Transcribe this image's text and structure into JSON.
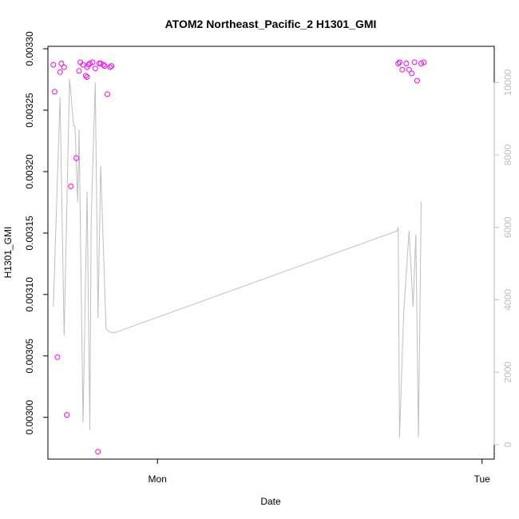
{
  "chart_data": {
    "type": "scatter",
    "title": "ATOM2 Northeast_Pacific_2 H1301_GMI",
    "xlabel": "Date",
    "ylabel": "H1301_GMI",
    "x_tick_labels": [
      "Mon",
      "Tue"
    ],
    "xlim": [
      -8.1,
      24.9
    ],
    "ylim": [
      0.002966,
      0.003302
    ],
    "y_ticks": [
      0.003,
      0.00305,
      0.0031,
      0.00315,
      0.0032,
      0.00325,
      0.0033
    ],
    "y_tick_labels": [
      "0.00300",
      "0.00305",
      "0.00310",
      "0.00315",
      "0.00320",
      "0.00325",
      "0.00330"
    ],
    "y2lim": [
      -400,
      11000
    ],
    "y2_ticks": [
      0,
      2000,
      4000,
      6000,
      8000,
      10000
    ],
    "y2_tick_labels": [
      "0",
      "2000",
      "4000",
      "6000",
      "8000",
      "10000"
    ],
    "grid": false,
    "legend": "none",
    "series": [
      {
        "role": "scatter",
        "axis": "left",
        "color": "#ff00ff",
        "marker": "open-circle",
        "x": [
          -7.7,
          -7.6,
          -7.4,
          -7.2,
          -7.1,
          -6.9,
          -6.7,
          -6.4,
          -6.0,
          -5.8,
          -5.7,
          -5.5,
          -5.3,
          -5.2,
          -5.2,
          -5.1,
          -5.0,
          -4.8,
          -4.6,
          -4.4,
          -4.3,
          -4.2,
          -4.0,
          -3.9,
          -3.7,
          -3.5,
          -3.4,
          17.8,
          17.9,
          18.1,
          18.4,
          18.6,
          18.8,
          19.0,
          19.2,
          19.5,
          19.7
        ],
        "y": [
          0.003287,
          0.003265,
          0.003049,
          0.003281,
          0.003288,
          0.003285,
          0.003002,
          0.003188,
          0.003211,
          0.003282,
          0.003289,
          0.003287,
          0.003278,
          0.003277,
          0.003285,
          0.003287,
          0.003288,
          0.003289,
          0.003284,
          0.002972,
          0.003288,
          0.003288,
          0.003287,
          0.003286,
          0.003263,
          0.003285,
          0.003286,
          0.003288,
          0.003289,
          0.003283,
          0.003288,
          0.003283,
          0.00328,
          0.003289,
          0.003274,
          0.003288,
          0.003289
        ]
      },
      {
        "role": "line",
        "axis": "right",
        "color": "#bebebe",
        "x": [
          -7.7,
          -7.2,
          -6.9,
          -6.5,
          -6.2,
          -6.1,
          -5.9,
          -5.8,
          -5.5,
          -5.2,
          -5.0,
          -4.9,
          -4.6,
          -4.4,
          -4.2,
          -3.8,
          -3.5,
          -3.3,
          -3.1,
          17.7,
          17.8,
          17.9,
          18.2,
          18.6,
          18.9,
          19.1,
          19.3,
          19.5
        ],
        "y": [
          3800,
          9600,
          3000,
          10100,
          8800,
          8800,
          6700,
          8700,
          600,
          7000,
          400,
          6200,
          10000,
          3500,
          7700,
          3200,
          3100,
          3100,
          3100,
          5900,
          6000,
          200,
          3600,
          5900,
          3800,
          5800,
          200,
          6700
        ]
      }
    ]
  }
}
